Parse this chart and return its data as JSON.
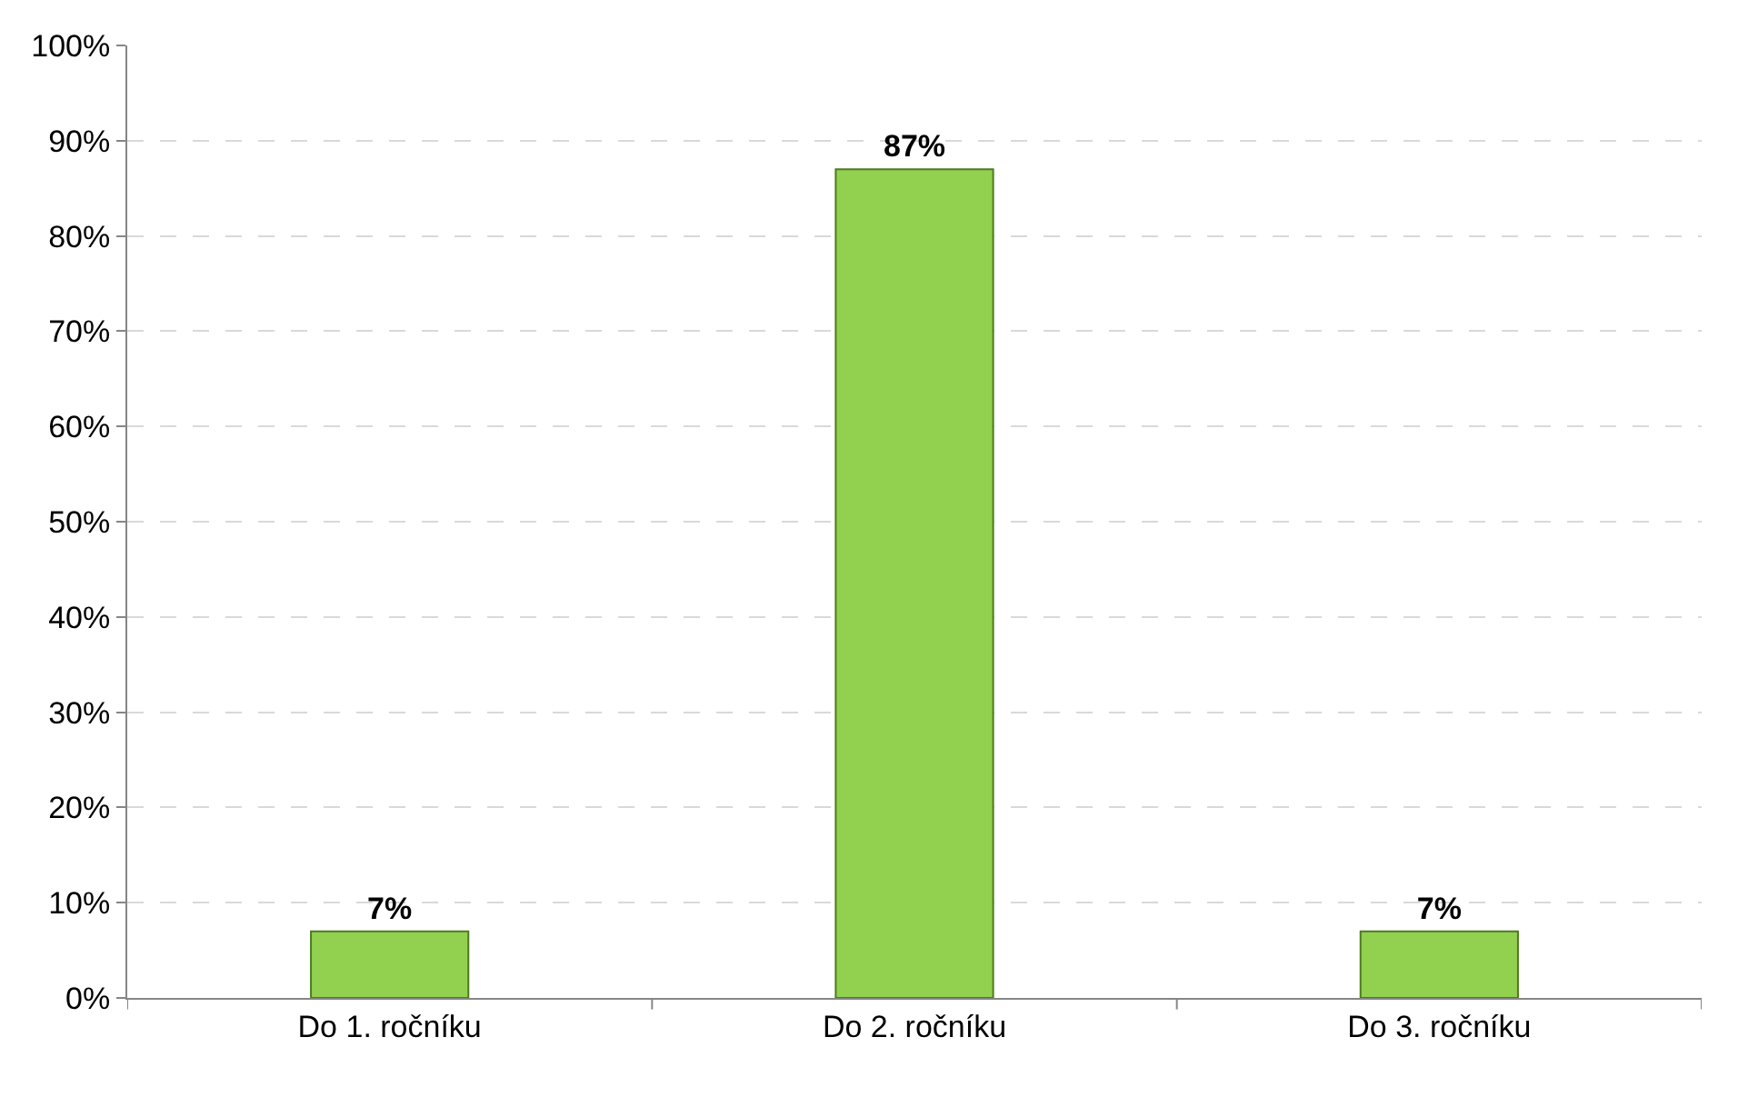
{
  "chart_data": {
    "type": "bar",
    "categories": [
      "Do 1. ročníku",
      "Do 2. ročníku",
      "Do 3. ročníku"
    ],
    "values": [
      7,
      87,
      7
    ],
    "value_labels": [
      "7%",
      "87%",
      "7%"
    ],
    "color": "#92d050",
    "ylim": [
      0,
      100
    ],
    "yticks": [
      {
        "value": 0,
        "label": "0%"
      },
      {
        "value": 10,
        "label": "10%"
      },
      {
        "value": 20,
        "label": "20%"
      },
      {
        "value": 30,
        "label": "30%"
      },
      {
        "value": 40,
        "label": "40%"
      },
      {
        "value": 50,
        "label": "50%"
      },
      {
        "value": 60,
        "label": "60%"
      },
      {
        "value": 70,
        "label": "70%"
      },
      {
        "value": 80,
        "label": "80%"
      },
      {
        "value": 90,
        "label": "90%"
      },
      {
        "value": 100,
        "label": "100%"
      }
    ],
    "grid": "y"
  }
}
